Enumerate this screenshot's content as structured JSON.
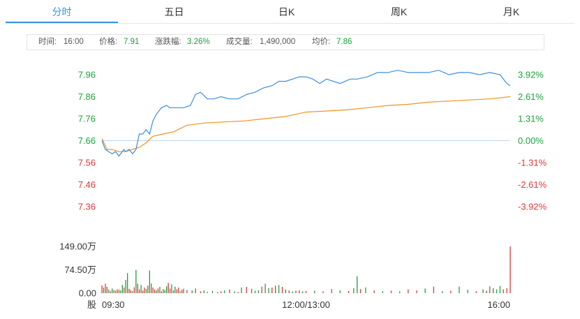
{
  "tabs": [
    {
      "label": "分时",
      "active": true
    },
    {
      "label": "五日",
      "active": false
    },
    {
      "label": "日K",
      "active": false
    },
    {
      "label": "周K",
      "active": false
    },
    {
      "label": "月K",
      "active": false
    }
  ],
  "info": {
    "time_label": "时间:",
    "time_value": "16:00",
    "price_label": "价格:",
    "price_value": "7.91",
    "change_label": "涨跌幅:",
    "change_value": "3.26%",
    "volume_label": "成交量:",
    "volume_value": "1,490,000",
    "avg_label": "均价:",
    "avg_value": "7.86"
  },
  "colors": {
    "up": "#d93a3a",
    "down": "#1aa23c",
    "price_line": "#3b8fdc",
    "avg_line": "#f0931e",
    "baseline": "#bcd8ef"
  },
  "chart_data": [
    {
      "type": "line",
      "title": "",
      "base_price": 7.66,
      "ylim": [
        7.36,
        7.96
      ],
      "y_ticks_left": [
        "7.96",
        "7.86",
        "7.76",
        "7.66",
        "7.56",
        "7.46",
        "7.36"
      ],
      "y_ticks_right": [
        "3.92%",
        "2.61%",
        "1.31%",
        "0.00%",
        "-1.31%",
        "-2.61%",
        "-3.92%"
      ],
      "x_ticks": [
        "09:30",
        "12:00/13:00",
        "16:00"
      ],
      "x_range_minutes": [
        0,
        240
      ],
      "series": [
        {
          "key": "price",
          "x": [
            0,
            2,
            4,
            6,
            8,
            10,
            11,
            13,
            14,
            16,
            18,
            20,
            22,
            24,
            26,
            28,
            30,
            32,
            35,
            38,
            40,
            44,
            48,
            52,
            55,
            58,
            62,
            66,
            70,
            75,
            80,
            85,
            90,
            95,
            100,
            104,
            108,
            112,
            116,
            120,
            124,
            128,
            132,
            136,
            140,
            146,
            150,
            156,
            162,
            168,
            174,
            180,
            186,
            192,
            198,
            204,
            210,
            216,
            222,
            228,
            234,
            236,
            238,
            240
          ],
          "y": [
            7.66,
            7.62,
            7.61,
            7.6,
            7.61,
            7.59,
            7.6,
            7.62,
            7.61,
            7.62,
            7.6,
            7.62,
            7.69,
            7.69,
            7.71,
            7.69,
            7.75,
            7.78,
            7.81,
            7.82,
            7.81,
            7.81,
            7.81,
            7.82,
            7.87,
            7.88,
            7.85,
            7.85,
            7.86,
            7.85,
            7.85,
            7.87,
            7.88,
            7.9,
            7.91,
            7.93,
            7.93,
            7.94,
            7.95,
            7.95,
            7.94,
            7.92,
            7.94,
            7.93,
            7.92,
            7.94,
            7.94,
            7.95,
            7.97,
            7.97,
            7.98,
            7.97,
            7.97,
            7.97,
            7.98,
            7.96,
            7.97,
            7.97,
            7.96,
            7.97,
            7.96,
            7.94,
            7.92,
            7.91
          ]
        },
        {
          "key": "average",
          "x": [
            0,
            3,
            6,
            10,
            14,
            18,
            22,
            26,
            30,
            36,
            42,
            50,
            60,
            72,
            84,
            96,
            108,
            120,
            132,
            144,
            156,
            168,
            180,
            192,
            204,
            216,
            228,
            240
          ],
          "y": [
            7.67,
            7.62,
            7.62,
            7.61,
            7.61,
            7.62,
            7.63,
            7.65,
            7.68,
            7.69,
            7.7,
            7.73,
            7.74,
            7.745,
            7.75,
            7.76,
            7.77,
            7.79,
            7.795,
            7.8,
            7.81,
            7.82,
            7.825,
            7.835,
            7.84,
            7.845,
            7.85,
            7.86
          ]
        }
      ]
    },
    {
      "type": "bar",
      "title": "",
      "unit_label": "股",
      "y_ticks": [
        "149.00万",
        "74.50万",
        "0.00"
      ],
      "ylim": [
        0,
        1490000
      ],
      "x_range_minutes": [
        0,
        240
      ],
      "bars": {
        "x": [
          0,
          1,
          2,
          3,
          4,
          5,
          6,
          7,
          8,
          9,
          10,
          11,
          12,
          13,
          14,
          15,
          16,
          17,
          18,
          19,
          20,
          21,
          22,
          23,
          24,
          25,
          26,
          27,
          28,
          29,
          30,
          31,
          32,
          33,
          34,
          35,
          36,
          37,
          38,
          39,
          40,
          41,
          42,
          43,
          44,
          45,
          46,
          47,
          48,
          50,
          53,
          55,
          58,
          60,
          62,
          65,
          68,
          70,
          72,
          75,
          78,
          80,
          82,
          85,
          88,
          90,
          92,
          94,
          96,
          98,
          100,
          102,
          104,
          106,
          108,
          110,
          112,
          114,
          116,
          118,
          120,
          125,
          130,
          135,
          140,
          145,
          148,
          150,
          152,
          155,
          160,
          165,
          170,
          175,
          180,
          185,
          190,
          195,
          200,
          205,
          210,
          215,
          220,
          224,
          226,
          228,
          230,
          232,
          234,
          236,
          238,
          240
        ],
        "volume": [
          250000,
          180000,
          300000,
          200000,
          120000,
          60000,
          150000,
          100000,
          80000,
          120000,
          110000,
          90000,
          260000,
          180000,
          420000,
          640000,
          140000,
          100000,
          60000,
          190000,
          740000,
          300000,
          120000,
          260000,
          80000,
          180000,
          140000,
          240000,
          720000,
          310000,
          180000,
          120000,
          90000,
          150000,
          200000,
          60000,
          130000,
          100000,
          220000,
          330000,
          150000,
          280000,
          90000,
          210000,
          120000,
          180000,
          60000,
          110000,
          140000,
          100000,
          90000,
          150000,
          60000,
          90000,
          40000,
          70000,
          40000,
          60000,
          90000,
          120000,
          60000,
          40000,
          180000,
          200000,
          140000,
          80000,
          90000,
          210000,
          300000,
          160000,
          180000,
          240000,
          260000,
          200000,
          120000,
          90000,
          60000,
          80000,
          90000,
          60000,
          70000,
          80000,
          60000,
          130000,
          90000,
          70000,
          160000,
          540000,
          130000,
          180000,
          90000,
          60000,
          80000,
          60000,
          120000,
          90000,
          150000,
          210000,
          60000,
          80000,
          210000,
          110000,
          60000,
          120000,
          80000,
          220000,
          160000,
          120000,
          230000,
          120000,
          160000,
          1490000
        ],
        "direction": [
          "up",
          "down",
          "up",
          "up",
          "down",
          "up",
          "down",
          "up",
          "down",
          "up",
          "up",
          "down",
          "down",
          "up",
          "down",
          "down",
          "up",
          "up",
          "down",
          "up",
          "down",
          "up",
          "up",
          "down",
          "up",
          "up",
          "down",
          "up",
          "down",
          "down",
          "up",
          "up",
          "down",
          "up",
          "down",
          "up",
          "up",
          "down",
          "down",
          "up",
          "up",
          "down",
          "up",
          "down",
          "up",
          "up",
          "down",
          "up",
          "down",
          "up",
          "down",
          "up",
          "up",
          "down",
          "up",
          "down",
          "up",
          "up",
          "down",
          "up",
          "down",
          "up",
          "down",
          "up",
          "up",
          "down",
          "down",
          "up",
          "down",
          "down",
          "up",
          "up",
          "down",
          "up",
          "down",
          "up",
          "down",
          "up",
          "up",
          "down",
          "up",
          "down",
          "up",
          "up",
          "down",
          "up",
          "down",
          "down",
          "up",
          "down",
          "up",
          "down",
          "up",
          "down",
          "up",
          "up",
          "down",
          "up",
          "down",
          "up",
          "down",
          "down",
          "up",
          "down",
          "up",
          "down",
          "up",
          "down",
          "down",
          "up",
          "up",
          "up"
        ]
      }
    }
  ]
}
